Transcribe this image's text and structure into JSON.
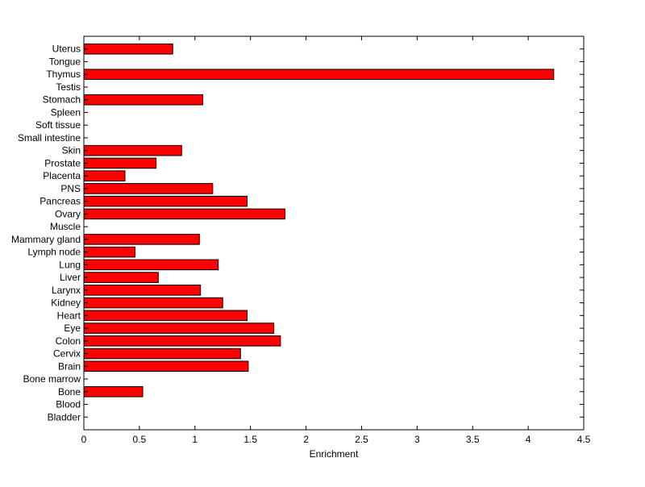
{
  "chart_data": {
    "type": "bar",
    "orientation": "horizontal",
    "title": "",
    "xlabel": "Enrichment",
    "ylabel": "",
    "xlim": [
      0,
      4.5
    ],
    "xticks": [
      0,
      0.5,
      1,
      1.5,
      2,
      2.5,
      3,
      3.5,
      4,
      4.5
    ],
    "xtick_labels": [
      "0",
      "0.5",
      "1",
      "1.5",
      "2",
      "2.5",
      "3",
      "3.5",
      "4",
      "4.5"
    ],
    "grid": false,
    "legend": "none",
    "bar_color": "#ff0000",
    "bar_edge_color": "#000000",
    "categories": [
      "Bladder",
      "Blood",
      "Bone",
      "Bone marrow",
      "Brain",
      "Cervix",
      "Colon",
      "Eye",
      "Heart",
      "Kidney",
      "Larynx",
      "Liver",
      "Lung",
      "Lymph node",
      "Mammary gland",
      "Muscle",
      "Ovary",
      "Pancreas",
      "PNS",
      "Placenta",
      "Prostate",
      "Skin",
      "Small intestine",
      "Soft tissue",
      "Spleen",
      "Stomach",
      "Testis",
      "Thymus",
      "Tongue",
      "Uterus"
    ],
    "values": [
      0,
      0,
      0.53,
      0,
      1.48,
      1.41,
      1.77,
      1.71,
      1.47,
      1.25,
      1.05,
      0.67,
      1.21,
      0.46,
      1.04,
      0,
      1.81,
      1.47,
      1.16,
      0.37,
      0.65,
      0.88,
      0,
      0,
      0,
      1.07,
      0,
      4.23,
      0,
      0.8
    ]
  }
}
